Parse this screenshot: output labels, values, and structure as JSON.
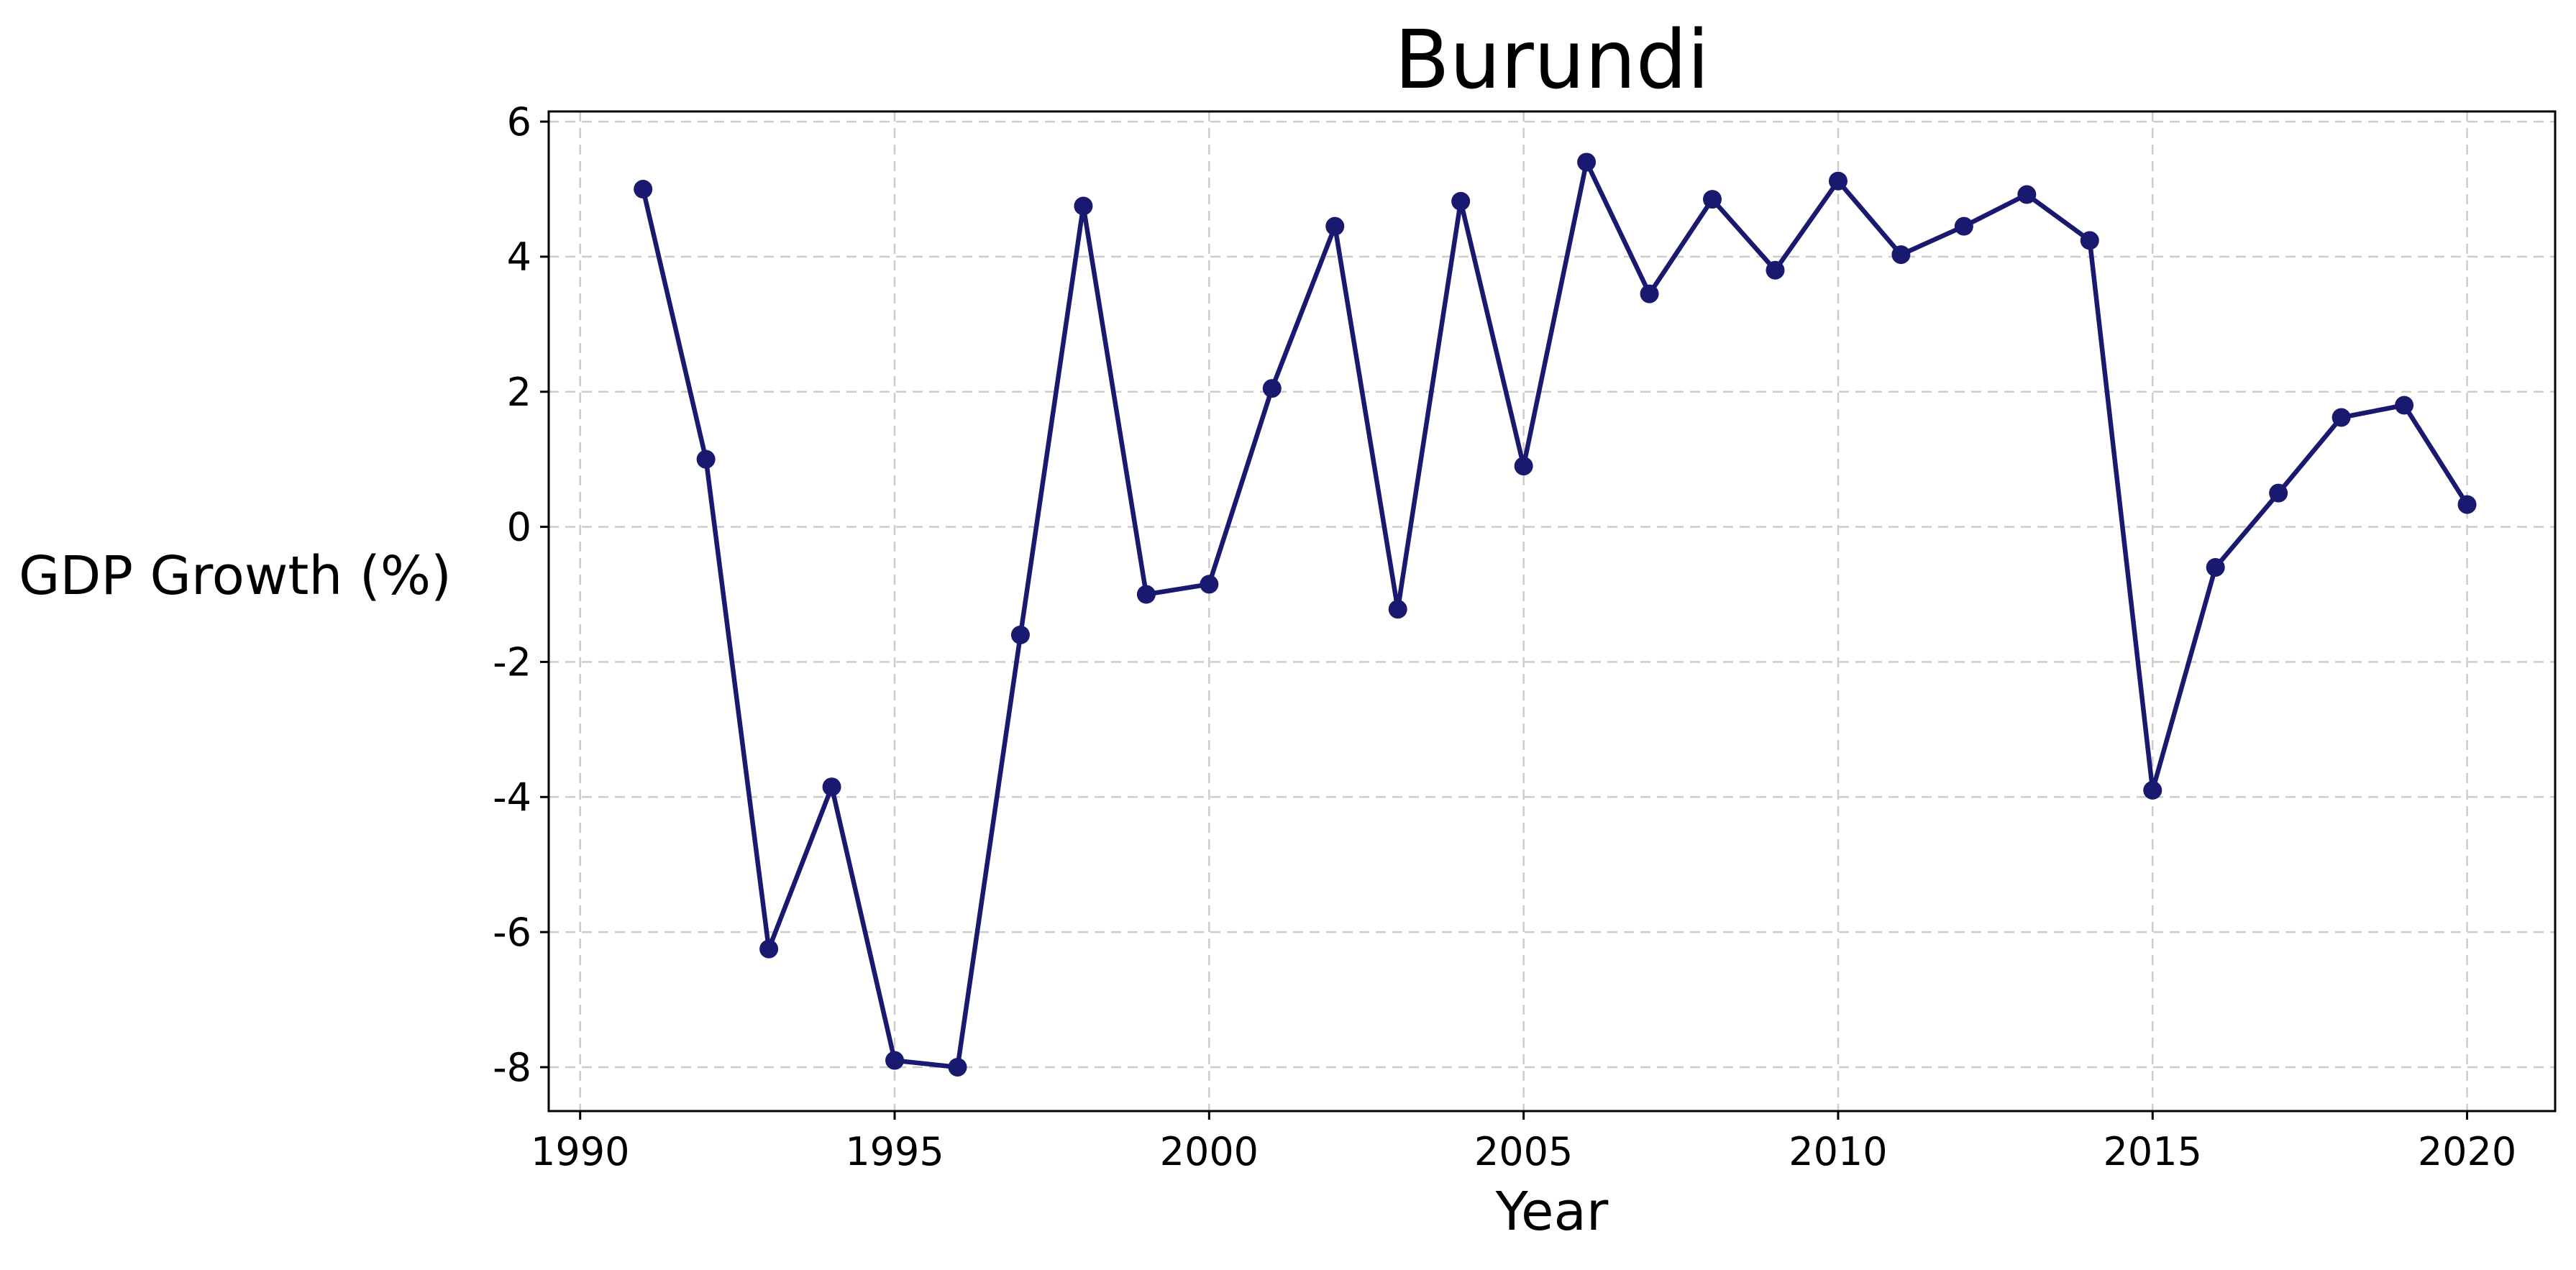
{
  "chart_data": {
    "type": "line",
    "title": "Burundi",
    "xlabel": "Year",
    "ylabel": "GDP Growth (%)",
    "xlim": [
      1989.5,
      2021.4
    ],
    "ylim": [
      -8.65,
      6.15
    ],
    "xticks": [
      1990,
      1995,
      2000,
      2005,
      2010,
      2015,
      2020
    ],
    "yticks": [
      -8,
      -6,
      -4,
      -2,
      0,
      2,
      4,
      6
    ],
    "grid": true,
    "line_color": "#191970",
    "series": [
      {
        "x": [
          1991,
          1992,
          1993,
          1994,
          1995,
          1996,
          1997,
          1998,
          1999,
          2000,
          2001,
          2002,
          2003,
          2004,
          2005,
          2006,
          2007,
          2008,
          2009,
          2010,
          2011,
          2012,
          2013,
          2014,
          2015,
          2016,
          2017,
          2018,
          2019,
          2020
        ],
        "values": [
          5.0,
          1.0,
          -6.25,
          -3.85,
          -7.9,
          -8.0,
          -1.6,
          4.75,
          -1.0,
          -0.85,
          2.05,
          4.45,
          -1.22,
          4.82,
          0.9,
          5.4,
          3.45,
          4.85,
          3.8,
          5.12,
          4.03,
          4.45,
          4.92,
          4.24,
          -3.9,
          -0.6,
          0.5,
          1.62,
          1.8,
          0.33
        ]
      }
    ]
  }
}
